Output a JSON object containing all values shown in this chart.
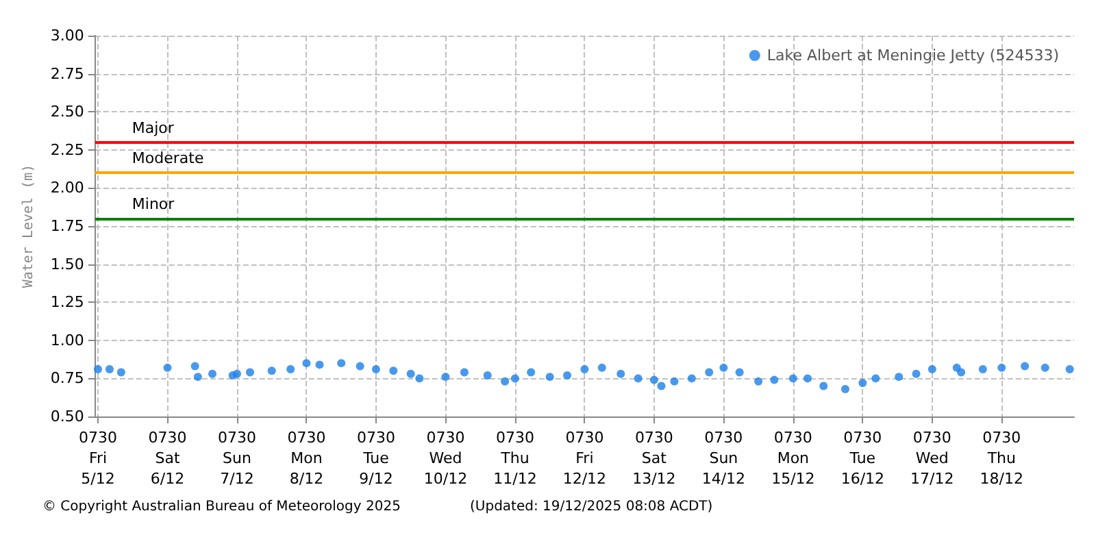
{
  "chart_data": {
    "type": "scatter",
    "ylabel": "Water Level (m)",
    "legend": "top right",
    "grid": true,
    "marker": "circle",
    "xlim": [
      "2025-12-05T06:30",
      "2025-12-19T08:30"
    ],
    "ylim": [
      0.5,
      3.0
    ],
    "yticks": [
      {
        "value": 0.5,
        "label": "0.50"
      },
      {
        "value": 0.75,
        "label": "0.75"
      },
      {
        "value": 1.0,
        "label": "1.00"
      },
      {
        "value": 1.25,
        "label": "1.25"
      },
      {
        "value": 1.5,
        "label": "1.50"
      },
      {
        "value": 1.75,
        "label": "1.75"
      },
      {
        "value": 2.0,
        "label": "2.00"
      },
      {
        "value": 2.25,
        "label": "2.25"
      },
      {
        "value": 2.5,
        "label": "2.50"
      },
      {
        "value": 2.75,
        "label": "2.75"
      },
      {
        "value": 3.0,
        "label": "3.00"
      }
    ],
    "xticks": [
      {
        "value": "2025-12-05T07:30",
        "label": "0730\nFri\n5/12"
      },
      {
        "value": "2025-12-06T07:30",
        "label": "0730\nSat\n6/12"
      },
      {
        "value": "2025-12-07T07:30",
        "label": "0730\nSun\n7/12"
      },
      {
        "value": "2025-12-08T07:30",
        "label": "0730\nMon\n8/12"
      },
      {
        "value": "2025-12-09T07:30",
        "label": "0730\nTue\n9/12"
      },
      {
        "value": "2025-12-10T07:30",
        "label": "0730\nWed\n10/12"
      },
      {
        "value": "2025-12-11T07:30",
        "label": "0730\nThu\n11/12"
      },
      {
        "value": "2025-12-12T07:30",
        "label": "0730\nFri\n12/12"
      },
      {
        "value": "2025-12-13T07:30",
        "label": "0730\nSat\n13/12"
      },
      {
        "value": "2025-12-14T07:30",
        "label": "0730\nSun\n14/12"
      },
      {
        "value": "2025-12-15T07:30",
        "label": "0730\nMon\n15/12"
      },
      {
        "value": "2025-12-16T07:30",
        "label": "0730\nTue\n16/12"
      },
      {
        "value": "2025-12-17T07:30",
        "label": "0730\nWed\n17/12"
      },
      {
        "value": "2025-12-18T07:30",
        "label": "0730\nThu\n18/12"
      }
    ],
    "x": [
      "2025-12-05T07:30",
      "2025-12-05T11:30",
      "2025-12-05T15:30",
      "2025-12-06T07:30",
      "2025-12-06T17:00",
      "2025-12-06T18:00",
      "2025-12-06T23:00",
      "2025-12-07T06:00",
      "2025-12-07T07:30",
      "2025-12-07T12:00",
      "2025-12-07T19:30",
      "2025-12-08T02:00",
      "2025-12-08T07:30",
      "2025-12-08T12:00",
      "2025-12-08T19:30",
      "2025-12-09T02:00",
      "2025-12-09T07:30",
      "2025-12-09T13:30",
      "2025-12-09T19:30",
      "2025-12-09T22:30",
      "2025-12-10T07:30",
      "2025-12-10T14:00",
      "2025-12-10T22:00",
      "2025-12-11T04:00",
      "2025-12-11T07:30",
      "2025-12-11T13:00",
      "2025-12-11T19:30",
      "2025-12-12T01:30",
      "2025-12-12T07:30",
      "2025-12-12T13:30",
      "2025-12-12T20:00",
      "2025-12-13T02:00",
      "2025-12-13T07:30",
      "2025-12-13T10:00",
      "2025-12-13T14:30",
      "2025-12-13T20:30",
      "2025-12-14T02:30",
      "2025-12-14T07:30",
      "2025-12-14T13:00",
      "2025-12-14T19:30",
      "2025-12-15T01:00",
      "2025-12-15T07:30",
      "2025-12-15T12:30",
      "2025-12-15T18:00",
      "2025-12-16T01:30",
      "2025-12-16T07:30",
      "2025-12-16T12:00",
      "2025-12-16T20:00",
      "2025-12-17T02:00",
      "2025-12-17T07:30",
      "2025-12-17T16:00",
      "2025-12-17T17:30",
      "2025-12-18T01:00",
      "2025-12-18T07:30",
      "2025-12-18T15:30",
      "2025-12-18T22:30",
      "2025-12-19T07:00"
    ],
    "series": [
      {
        "name": "Lake Albert at Meningie Jetty (524533)",
        "color": "#1a7fe8",
        "values": [
          0.81,
          0.81,
          0.79,
          0.82,
          0.83,
          0.76,
          0.78,
          0.77,
          0.78,
          0.79,
          0.8,
          0.81,
          0.85,
          0.84,
          0.85,
          0.83,
          0.81,
          0.8,
          0.78,
          0.75,
          0.76,
          0.79,
          0.77,
          0.73,
          0.75,
          0.79,
          0.76,
          0.77,
          0.81,
          0.82,
          0.78,
          0.75,
          0.74,
          0.7,
          0.73,
          0.75,
          0.79,
          0.82,
          0.79,
          0.73,
          0.74,
          0.75,
          0.75,
          0.7,
          0.68,
          0.72,
          0.75,
          0.76,
          0.78,
          0.81,
          0.82,
          0.79,
          0.81,
          0.82,
          0.83,
          0.82,
          0.81
        ]
      }
    ],
    "ref_lines": [
      {
        "axis": "y",
        "value": 2.3,
        "label": "Major",
        "color": "#ff0000"
      },
      {
        "axis": "y",
        "value": 2.1,
        "label": "Moderate",
        "color": "#ffa500"
      },
      {
        "axis": "y",
        "value": 1.8,
        "label": "Minor",
        "color": "#008000"
      }
    ],
    "annotations": [
      "© Copyright Australian Bureau of Meteorology 2025",
      "(Updated: 19/12/2025 08:08 ACDT)"
    ]
  }
}
